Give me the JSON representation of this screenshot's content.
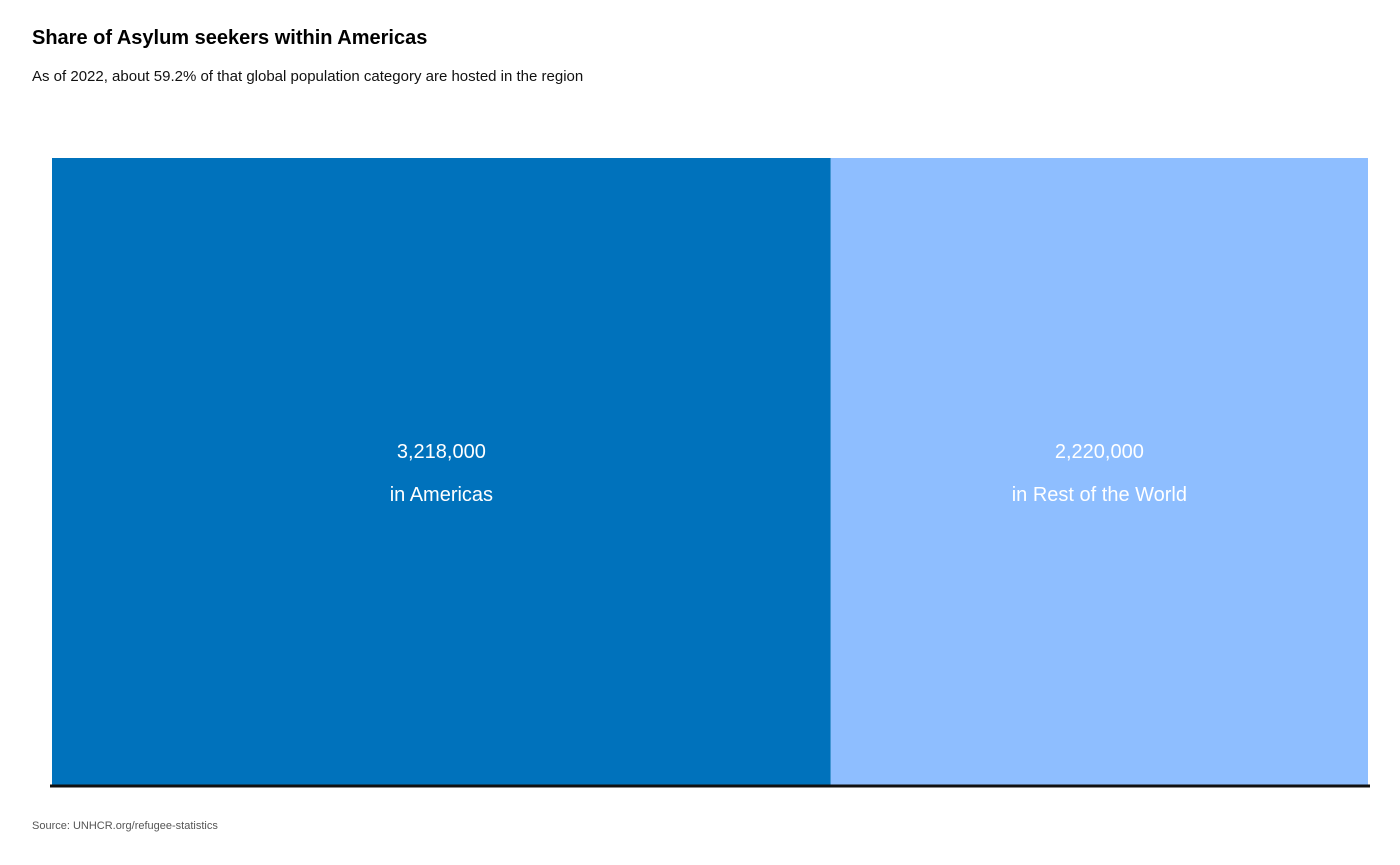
{
  "title": "Share of Asylum seekers within Americas",
  "subtitle": "As of 2022, about 59.2% of that global population category are hosted in the region",
  "source": "Source: UNHCR.org/refugee-statistics",
  "colors": {
    "americas": "#0072bc",
    "rest_of_world": "#8ebeff",
    "baseline": "#111111",
    "label_text": "#ffffff"
  },
  "chart_data": {
    "type": "bar",
    "layout": "stacked-horizontal-share",
    "categories": [
      "Americas",
      "Rest of the World"
    ],
    "values": [
      3218000,
      2220000
    ],
    "value_labels": [
      "3,218,000",
      "2,220,000"
    ],
    "category_labels": [
      "in Americas",
      "in Rest of the World"
    ],
    "share_percent": 59.2,
    "year": 2022
  }
}
